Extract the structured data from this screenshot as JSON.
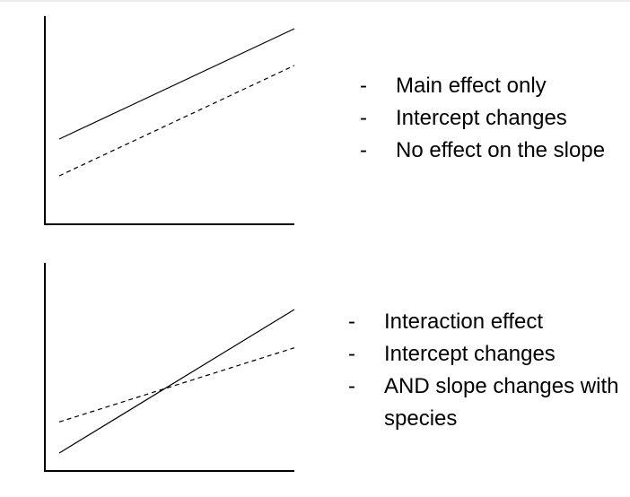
{
  "panels": [
    {
      "id": "main-effect",
      "lines": [
        {
          "style": "solid",
          "start": [
            0,
            1
          ],
          "end": [
            10,
            4
          ]
        },
        {
          "style": "dashed",
          "start": [
            0,
            0
          ],
          "end": [
            10,
            3
          ]
        }
      ],
      "bullets": [
        {
          "dash": "-",
          "text": "Main effect only"
        },
        {
          "dash": "-",
          "text": "Intercept changes"
        },
        {
          "dash": "-",
          "text": "No effect on the slope"
        }
      ]
    },
    {
      "id": "interaction-effect",
      "lines": [
        {
          "style": "solid",
          "start": [
            0,
            0
          ],
          "end": [
            10,
            6
          ]
        },
        {
          "style": "dashed",
          "start": [
            0,
            1.3
          ],
          "end": [
            10,
            4.4
          ]
        }
      ],
      "bullets": [
        {
          "dash": "-",
          "text": "Interaction effect"
        },
        {
          "dash": "-",
          "text": "Intercept changes"
        },
        {
          "dash": "-",
          "text": "AND slope changes with species"
        }
      ]
    }
  ],
  "colors": {
    "axis": "#000000",
    "line": "#000000",
    "text": "#000000"
  }
}
